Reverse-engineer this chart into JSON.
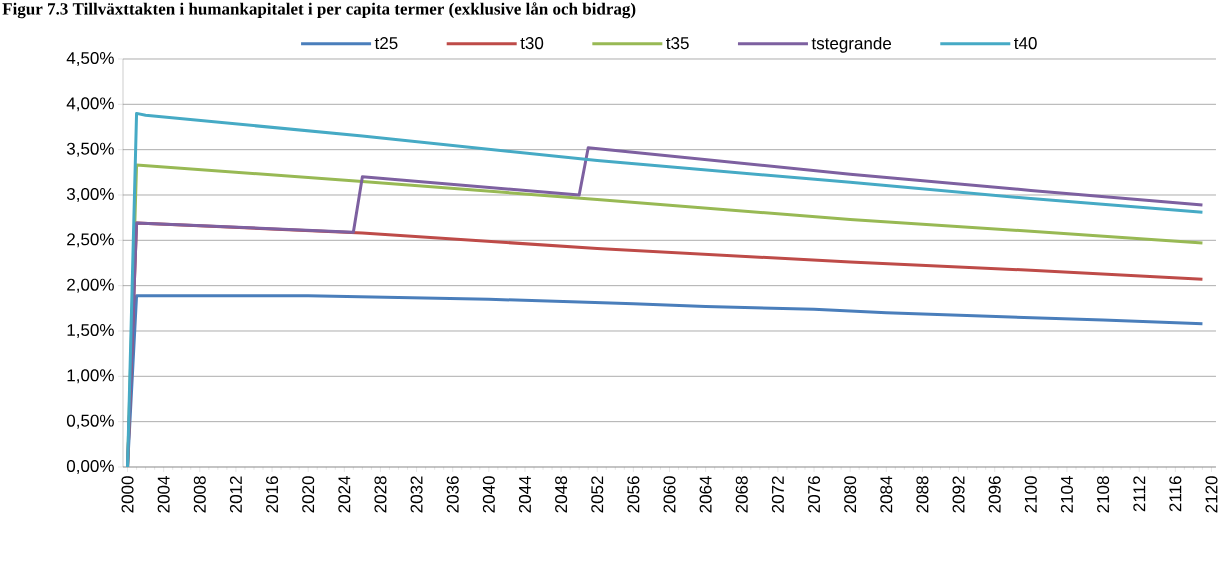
{
  "chart_data": {
    "type": "line",
    "title": "Figur 7.3 Tillväxttakten i humankapitalet i per capita termer (exklusive lån och bidrag)",
    "xlim": [
      1999.5,
      2120.5
    ],
    "xticks": [
      2000,
      2004,
      2008,
      2012,
      2016,
      2020,
      2024,
      2028,
      2032,
      2036,
      2040,
      2044,
      2048,
      2052,
      2056,
      2060,
      2064,
      2068,
      2072,
      2076,
      2080,
      2084,
      2088,
      2092,
      2096,
      2100,
      2104,
      2108,
      2112,
      2116,
      2120
    ],
    "ylim": [
      0,
      4.5
    ],
    "yticks": [
      {
        "value": 0,
        "label": "0,00%"
      },
      {
        "value": 0.5,
        "label": "0,50%"
      },
      {
        "value": 1,
        "label": "1,00%"
      },
      {
        "value": 1.5,
        "label": "1,50%"
      },
      {
        "value": 2,
        "label": "2,00%"
      },
      {
        "value": 2.5,
        "label": "2,50%"
      },
      {
        "value": 3,
        "label": "3,00%"
      },
      {
        "value": 3.5,
        "label": "3,50%"
      },
      {
        "value": 4,
        "label": "4,00%"
      },
      {
        "value": 4.5,
        "label": "4,50%"
      }
    ],
    "grid": "y",
    "legend": "top",
    "marker": "none",
    "line_style": "solid",
    "series": [
      {
        "name": "t25",
        "color": "#4a7ebb",
        "x": [
          2000,
          2001,
          2020,
          2030,
          2040,
          2050,
          2056,
          2064,
          2076,
          2084,
          2096,
          2108,
          2119
        ],
        "values": [
          0,
          1.89,
          1.89,
          1.87,
          1.85,
          1.82,
          1.8,
          1.77,
          1.74,
          1.7,
          1.66,
          1.62,
          1.58
        ]
      },
      {
        "name": "t30",
        "color": "#be4b48",
        "x": [
          2000,
          2001,
          2026,
          2052,
          2080,
          2100,
          2119
        ],
        "values": [
          0,
          2.69,
          2.58,
          2.41,
          2.26,
          2.17,
          2.07
        ]
      },
      {
        "name": "t35",
        "color": "#98b954",
        "x": [
          2000,
          2001,
          2026,
          2052,
          2080,
          2100,
          2119
        ],
        "values": [
          0,
          3.33,
          3.15,
          2.95,
          2.73,
          2.6,
          2.47
        ]
      },
      {
        "name": "tstegrande",
        "color": "#7d60a0",
        "x": [
          2000,
          2001,
          2025,
          2026,
          2050,
          2051,
          2080,
          2100,
          2119
        ],
        "values": [
          0,
          2.69,
          2.59,
          3.2,
          3.0,
          3.52,
          3.23,
          3.05,
          2.89
        ]
      },
      {
        "name": "t40",
        "color": "#46aac5",
        "x": [
          2000,
          2001,
          2002,
          2026,
          2052,
          2080,
          2100,
          2119
        ],
        "values": [
          0,
          3.9,
          3.88,
          3.65,
          3.38,
          3.14,
          2.96,
          2.81
        ]
      }
    ]
  }
}
